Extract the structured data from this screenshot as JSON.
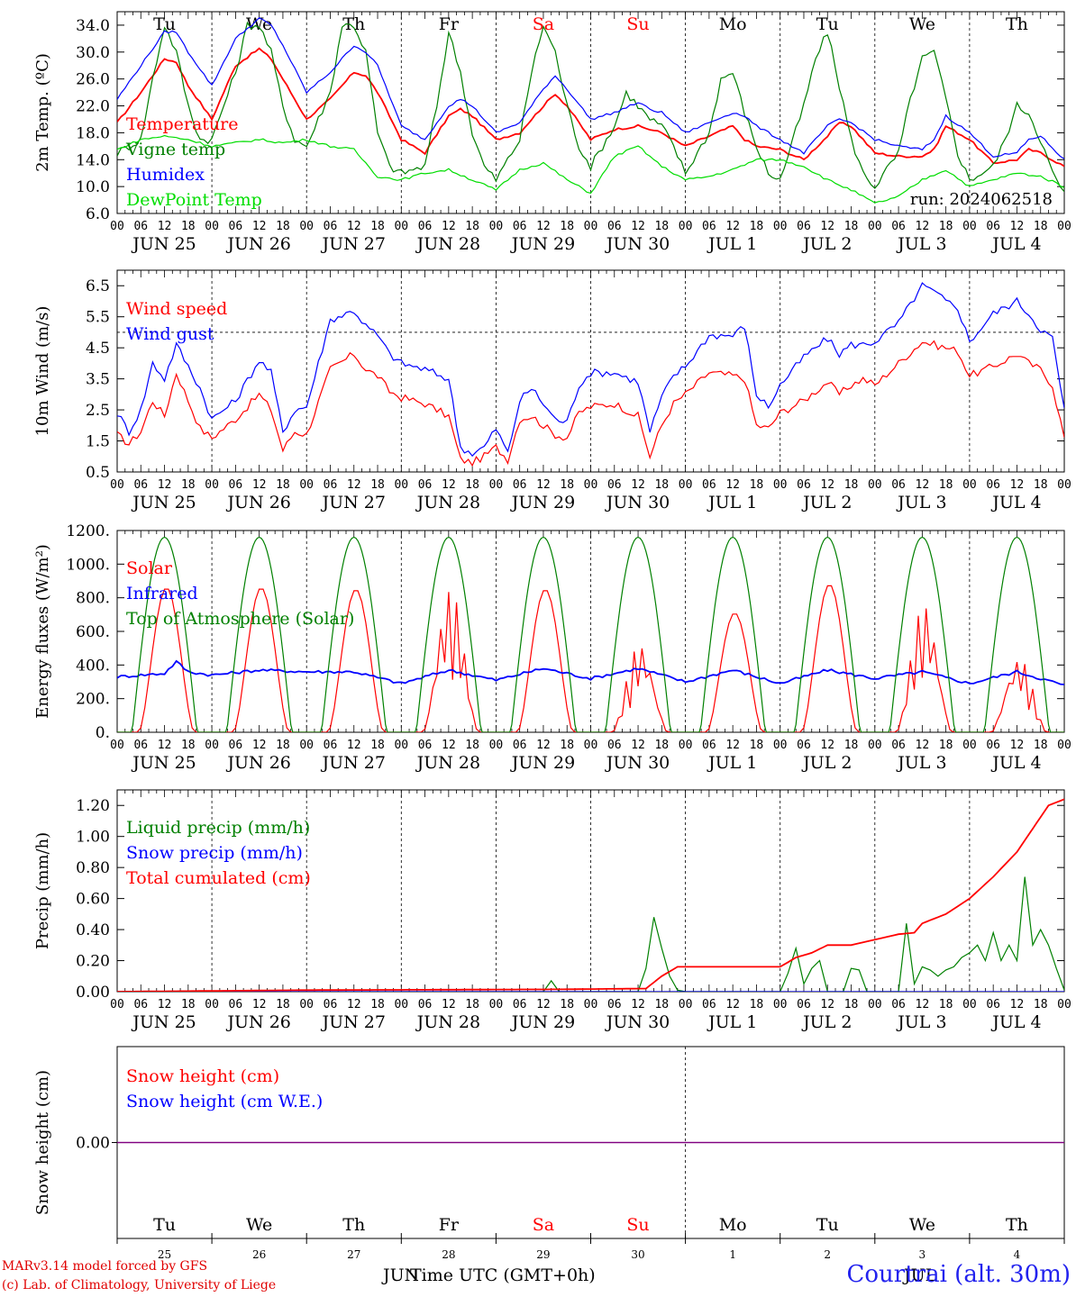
{
  "run_label": "run: 2024062518",
  "x_caption": "Time UTC (GMT+0h)",
  "station": "Courtrai (alt. 30m)",
  "credits": [
    "MARv3.14 model forced by GFS",
    "(c) Lab. of Climatology, University of Liege"
  ],
  "months_bottom": [
    "JUN",
    "JUL"
  ],
  "colors": {
    "red": "#ff0000",
    "blue": "#0000ff",
    "green": "#008000",
    "lightgreen": "#00dd00",
    "purple": "#800080"
  },
  "days": [
    {
      "weekday": "Tu",
      "date": "JUN 25",
      "num": "25",
      "weekend": false
    },
    {
      "weekday": "We",
      "date": "JUN 26",
      "num": "26",
      "weekend": false
    },
    {
      "weekday": "Th",
      "date": "JUN 27",
      "num": "27",
      "weekend": false
    },
    {
      "weekday": "Fr",
      "date": "JUN 28",
      "num": "28",
      "weekend": false
    },
    {
      "weekday": "Sa",
      "date": "JUN 29",
      "num": "29",
      "weekend": true
    },
    {
      "weekday": "Su",
      "date": "JUN 30",
      "num": "30",
      "weekend": true
    },
    {
      "weekday": "Mo",
      "date": "JUL  1",
      "num": "1",
      "weekend": false
    },
    {
      "weekday": "Tu",
      "date": "JUL  2",
      "num": "2",
      "weekend": false
    },
    {
      "weekday": "We",
      "date": "JUL  3",
      "num": "3",
      "weekend": false
    },
    {
      "weekday": "Th",
      "date": "JUL  4",
      "num": "4",
      "weekend": false
    }
  ],
  "hour_ticks": [
    "00",
    "06",
    "12",
    "18"
  ],
  "chart_data": [
    {
      "id": "temp",
      "type": "line",
      "ylabel": "2m Temp. (ºC)",
      "ylim": [
        6,
        36
      ],
      "yticks": [
        "6.0",
        "10.0",
        "14.0",
        "18.0",
        "22.0",
        "26.0",
        "30.0",
        "34.0"
      ],
      "x_unit": "hours since JUN 25 00 UTC",
      "series": [
        {
          "name": "Temperature",
          "color": "#ff0000",
          "x": [
            0,
            6,
            12,
            15,
            18,
            24,
            30,
            36,
            39,
            42,
            48,
            54,
            60,
            63,
            66,
            72,
            78,
            84,
            87,
            90,
            96,
            102,
            108,
            111,
            114,
            120,
            126,
            132,
            135,
            138,
            144,
            150,
            156,
            159,
            162,
            168,
            174,
            180,
            183,
            186,
            192,
            198,
            204,
            207,
            210,
            216,
            222,
            228,
            231,
            234,
            240
          ],
          "y": [
            19.5,
            24,
            29,
            28.5,
            25,
            20,
            28,
            30.5,
            29,
            26,
            20,
            23,
            27,
            26.5,
            24,
            17,
            15,
            20.5,
            21.5,
            20.5,
            17,
            18,
            22,
            23.8,
            22,
            17,
            18.5,
            19,
            18.5,
            18,
            16,
            17.5,
            19,
            17,
            16,
            15.5,
            14,
            17.5,
            19.5,
            19,
            15,
            14.5,
            14.5,
            15.5,
            19,
            17,
            13.5,
            14,
            15.5,
            15,
            13
          ]
        },
        {
          "name": "Vigne temp",
          "color": "#008000",
          "x": [
            0,
            6,
            9,
            12,
            15,
            18,
            21,
            24,
            30,
            33,
            36,
            39,
            42,
            45,
            48,
            54,
            57,
            60,
            63,
            66,
            69,
            72,
            78,
            81,
            84,
            87,
            90,
            93,
            96,
            102,
            105,
            108,
            111,
            114,
            117,
            120,
            126,
            129,
            132,
            135,
            138,
            141,
            144,
            150,
            153,
            156,
            159,
            162,
            165,
            168,
            174,
            177,
            180,
            183,
            186,
            189,
            192,
            198,
            201,
            204,
            207,
            210,
            213,
            216,
            222,
            225,
            228,
            231,
            234,
            237,
            240
          ],
          "y": [
            15,
            17,
            26,
            34,
            30,
            22,
            17,
            17,
            27,
            34,
            34,
            30,
            22,
            17,
            16,
            24,
            34,
            34,
            30,
            18,
            13,
            12,
            13,
            22,
            33,
            27,
            18,
            13,
            11,
            17,
            27,
            34,
            30,
            22,
            16,
            13,
            19,
            24,
            22,
            20,
            19,
            16,
            12,
            18,
            26,
            27,
            21,
            16,
            12,
            11,
            22,
            29,
            33,
            25,
            17,
            12,
            10,
            15,
            23,
            29,
            30,
            23,
            15,
            11,
            13,
            17,
            22,
            21,
            17,
            12,
            9
          ]
        },
        {
          "name": "Humidex",
          "color": "#0000ff",
          "x": [
            0,
            6,
            12,
            15,
            18,
            24,
            30,
            36,
            39,
            42,
            48,
            54,
            60,
            63,
            66,
            72,
            78,
            84,
            87,
            90,
            96,
            102,
            108,
            111,
            114,
            120,
            126,
            132,
            135,
            138,
            144,
            150,
            156,
            159,
            162,
            168,
            174,
            180,
            183,
            186,
            192,
            198,
            204,
            207,
            210,
            216,
            222,
            228,
            231,
            234,
            240
          ],
          "y": [
            23,
            28,
            33,
            33,
            30,
            25,
            32,
            35,
            34,
            31,
            24,
            27,
            31,
            30,
            28,
            19,
            17,
            22,
            23,
            22,
            18,
            19.5,
            24.5,
            26.5,
            24.5,
            20,
            21,
            22.5,
            21.5,
            21,
            18,
            19.5,
            21,
            20.5,
            19,
            17,
            15,
            19,
            20,
            19.5,
            17,
            16,
            15.5,
            17,
            20.5,
            18,
            14.5,
            15,
            17,
            17.5,
            14
          ]
        },
        {
          "name": "DewPoint Temp",
          "color": "#00dd00",
          "x": [
            0,
            6,
            12,
            18,
            24,
            30,
            36,
            42,
            48,
            54,
            60,
            66,
            72,
            78,
            84,
            90,
            96,
            102,
            108,
            114,
            120,
            126,
            132,
            138,
            144,
            150,
            156,
            162,
            168,
            174,
            180,
            186,
            192,
            198,
            204,
            210,
            216,
            222,
            228,
            234,
            240
          ],
          "y": [
            15.5,
            17,
            17.5,
            17,
            16,
            16.5,
            17,
            16.5,
            17,
            16,
            15.5,
            11.5,
            11,
            12,
            12.5,
            11,
            9.5,
            12.5,
            13.5,
            11,
            9,
            14.5,
            16,
            13,
            11,
            11.5,
            12.5,
            14,
            14,
            13,
            11,
            9.5,
            7.5,
            8.5,
            11,
            12.5,
            10,
            11,
            12,
            11.5,
            10
          ]
        }
      ]
    },
    {
      "id": "wind",
      "type": "line",
      "ylabel": "10m Wind (m/s)",
      "ylim": [
        0.5,
        7
      ],
      "yticks": [
        "0.5",
        "1.5",
        "2.5",
        "3.5",
        "4.5",
        "5.5",
        "6.5"
      ],
      "threshold": 5.0,
      "series": [
        {
          "name": "Wind speed",
          "color": "#ff0000",
          "x": [
            0,
            3,
            6,
            9,
            12,
            15,
            18,
            21,
            24,
            30,
            36,
            39,
            42,
            45,
            48,
            54,
            60,
            63,
            66,
            69,
            72,
            78,
            84,
            87,
            90,
            93,
            96,
            99,
            102,
            105,
            108,
            111,
            114,
            117,
            120,
            126,
            132,
            135,
            138,
            141,
            144,
            150,
            156,
            159,
            162,
            165,
            168,
            174,
            180,
            183,
            186,
            189,
            192,
            198,
            204,
            207,
            210,
            213,
            216,
            222,
            228,
            231,
            234,
            237,
            240
          ],
          "y": [
            1.7,
            1.4,
            1.8,
            2.8,
            2.3,
            3.7,
            2.8,
            1.9,
            1.6,
            2.2,
            3.0,
            2.5,
            1.2,
            1.8,
            1.7,
            3.8,
            4.3,
            3.8,
            3.6,
            3.1,
            2.9,
            2.7,
            2.3,
            0.9,
            0.8,
            1.0,
            1.3,
            0.9,
            2.2,
            2.3,
            2.0,
            1.7,
            1.6,
            2.4,
            2.6,
            2.7,
            2.3,
            1.0,
            2.0,
            2.7,
            3.0,
            3.7,
            3.6,
            3.5,
            2.0,
            1.9,
            2.4,
            2.8,
            3.4,
            3.0,
            3.3,
            3.5,
            3.3,
            4.0,
            4.7,
            4.6,
            4.5,
            4.4,
            3.6,
            3.9,
            4.3,
            4.0,
            3.8,
            3.3,
            1.6
          ]
        },
        {
          "name": "Wind gust",
          "color": "#0000ff",
          "x": [
            0,
            3,
            6,
            9,
            12,
            15,
            18,
            21,
            24,
            30,
            36,
            39,
            42,
            45,
            48,
            54,
            60,
            63,
            66,
            69,
            72,
            78,
            84,
            87,
            90,
            93,
            96,
            99,
            102,
            105,
            108,
            111,
            114,
            117,
            120,
            126,
            132,
            135,
            138,
            141,
            144,
            150,
            156,
            159,
            162,
            165,
            168,
            174,
            180,
            183,
            186,
            189,
            192,
            198,
            204,
            207,
            210,
            213,
            216,
            222,
            228,
            231,
            234,
            237,
            240
          ],
          "y": [
            2.4,
            1.8,
            2.5,
            4.0,
            3.5,
            4.6,
            3.9,
            3.2,
            2.2,
            2.8,
            4.1,
            3.7,
            1.8,
            2.5,
            2.6,
            5.4,
            5.7,
            5.2,
            4.9,
            4.3,
            4.0,
            3.8,
            3.5,
            1.3,
            1.1,
            1.3,
            1.9,
            1.1,
            2.8,
            3.2,
            2.7,
            2.2,
            2.1,
            3.3,
            3.7,
            3.7,
            3.4,
            1.8,
            2.9,
            3.6,
            3.9,
            4.9,
            4.9,
            5.2,
            3.0,
            2.6,
            3.3,
            4.2,
            4.8,
            4.3,
            4.6,
            4.6,
            4.7,
            5.3,
            6.5,
            6.3,
            6.0,
            5.8,
            4.7,
            5.6,
            6.0,
            5.6,
            5.1,
            4.8,
            2.5
          ]
        }
      ]
    },
    {
      "id": "energy",
      "type": "line",
      "ylabel": "Energy fluxes (W/m²)",
      "ylim": [
        0,
        1200
      ],
      "yticks": [
        "0.",
        "200.",
        "400.",
        "600.",
        "800.",
        "1000.",
        "1200."
      ],
      "series": [
        {
          "name": "Solar",
          "color": "#ff0000",
          "daily_peaks": [
            860,
            860,
            850,
            850,
            850,
            530,
            710,
            880,
            760,
            450
          ]
        },
        {
          "name": "Infrared",
          "color": "#0000ff",
          "x": [
            0,
            12,
            15,
            18,
            24,
            36,
            48,
            60,
            72,
            84,
            96,
            108,
            120,
            132,
            144,
            156,
            168,
            180,
            192,
            204,
            216,
            228,
            240
          ],
          "y": [
            330,
            350,
            420,
            360,
            340,
            370,
            360,
            360,
            290,
            370,
            310,
            380,
            320,
            380,
            300,
            370,
            290,
            370,
            320,
            360,
            290,
            360,
            280
          ]
        },
        {
          "name": "Top of Atmosphere (Solar)",
          "color": "#008000",
          "daily_peak": 1160
        }
      ]
    },
    {
      "id": "precip",
      "type": "line",
      "ylabel": "Precip (mm/h)",
      "ylim": [
        0,
        1.3
      ],
      "yticks": [
        "0.00",
        "0.20",
        "0.40",
        "0.60",
        "0.80",
        "1.00",
        "1.20"
      ],
      "series": [
        {
          "name": "Liquid precip (mm/h)",
          "color": "#008000",
          "x": [
            0,
            108,
            110,
            112,
            132,
            134,
            136,
            138,
            140,
            142,
            144,
            168,
            170,
            172,
            174,
            176,
            178,
            180,
            182,
            184,
            186,
            188,
            190,
            192,
            198,
            200,
            202,
            204,
            206,
            208,
            210,
            212,
            214,
            216,
            218,
            220,
            222,
            224,
            226,
            228,
            230,
            232,
            234,
            236,
            238,
            240
          ],
          "y": [
            0,
            0,
            0.07,
            0,
            0,
            0.15,
            0.48,
            0.28,
            0.1,
            0.01,
            0,
            0,
            0.12,
            0.28,
            0.05,
            0.15,
            0.2,
            0,
            0,
            0,
            0.15,
            0.14,
            0,
            0,
            0,
            0.44,
            0.05,
            0.16,
            0.14,
            0.1,
            0.14,
            0.16,
            0.22,
            0.25,
            0.3,
            0.2,
            0.38,
            0.2,
            0.3,
            0.2,
            0.74,
            0.3,
            0.4,
            0.3,
            0.15,
            0.01
          ]
        },
        {
          "name": "Snow precip (mm/h)",
          "color": "#0000ff",
          "x": [
            0,
            240
          ],
          "y": [
            0,
            0
          ]
        },
        {
          "name": "Total cumulated (cm)",
          "color": "#ff0000",
          "x": [
            0,
            48,
            112,
            134,
            138,
            142,
            168,
            172,
            176,
            180,
            186,
            198,
            202,
            204,
            210,
            216,
            222,
            228,
            232,
            236,
            240
          ],
          "y": [
            0,
            0.01,
            0.015,
            0.02,
            0.1,
            0.16,
            0.16,
            0.22,
            0.25,
            0.3,
            0.3,
            0.37,
            0.38,
            0.44,
            0.5,
            0.6,
            0.74,
            0.9,
            1.05,
            1.2,
            1.24
          ]
        }
      ]
    },
    {
      "id": "snow",
      "type": "line",
      "ylabel": "Snow height (cm)",
      "ylim": [
        -1,
        1
      ],
      "yticks": [
        "0.00"
      ],
      "series": [
        {
          "name": "Snow height (cm)",
          "color": "#ff0000",
          "x": [
            0,
            240
          ],
          "y": [
            0,
            0
          ]
        },
        {
          "name": "Snow height (cm W.E.)",
          "color": "#0000ff",
          "x": [
            0,
            240
          ],
          "y": [
            0,
            0
          ]
        }
      ]
    }
  ]
}
